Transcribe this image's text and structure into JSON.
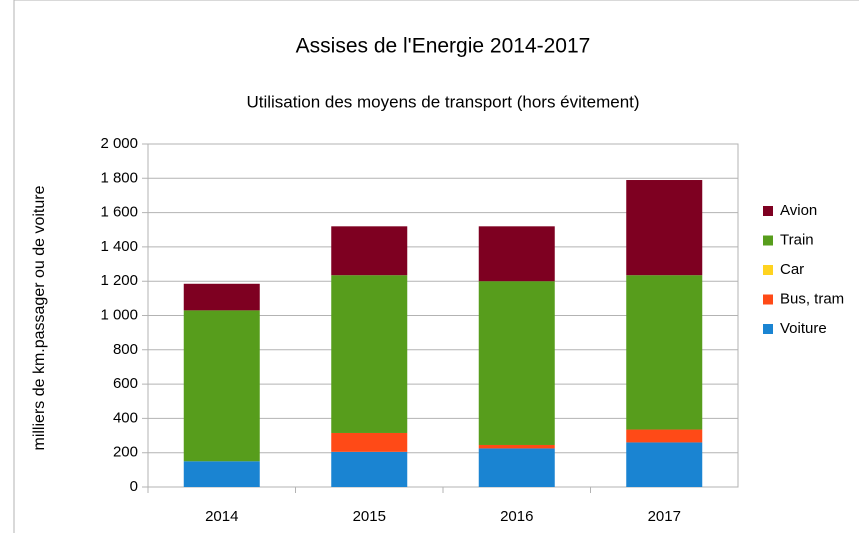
{
  "chart_data": {
    "type": "stacked-bar",
    "title": "Assises de l'Energie 2014-2017",
    "subtitle": "Utilisation des moyens de transport (hors évitement)",
    "y_label": "milliers de km.passager ou de voiture",
    "categories": [
      "2014",
      "2015",
      "2016",
      "2017"
    ],
    "series": [
      {
        "name": "Voiture",
        "color": "#1a84d2",
        "values": [
          150,
          205,
          225,
          260
        ]
      },
      {
        "name": "Bus, tram",
        "color": "#ff4a17",
        "values": [
          0,
          110,
          20,
          75
        ]
      },
      {
        "name": "Car",
        "color": "#ffd320",
        "values": [
          0,
          0,
          0,
          0
        ]
      },
      {
        "name": "Train",
        "color": "#579d1c",
        "values": [
          880,
          920,
          955,
          900
        ]
      },
      {
        "name": "Avion",
        "color": "#7e0021",
        "values": [
          155,
          285,
          320,
          555
        ]
      }
    ],
    "ylim": [
      0,
      2000
    ],
    "yticks": [
      0,
      200,
      400,
      600,
      800,
      {
        "value": 1000,
        "label": "1 000"
      },
      {
        "value": 1200,
        "label": "1 200"
      },
      {
        "value": 1400,
        "label": "1 400"
      },
      {
        "value": 1600,
        "label": "1 600"
      },
      {
        "value": 1800,
        "label": "1 800"
      },
      {
        "value": 2000,
        "label": "2 000"
      }
    ],
    "grid": true,
    "legend": "right"
  }
}
